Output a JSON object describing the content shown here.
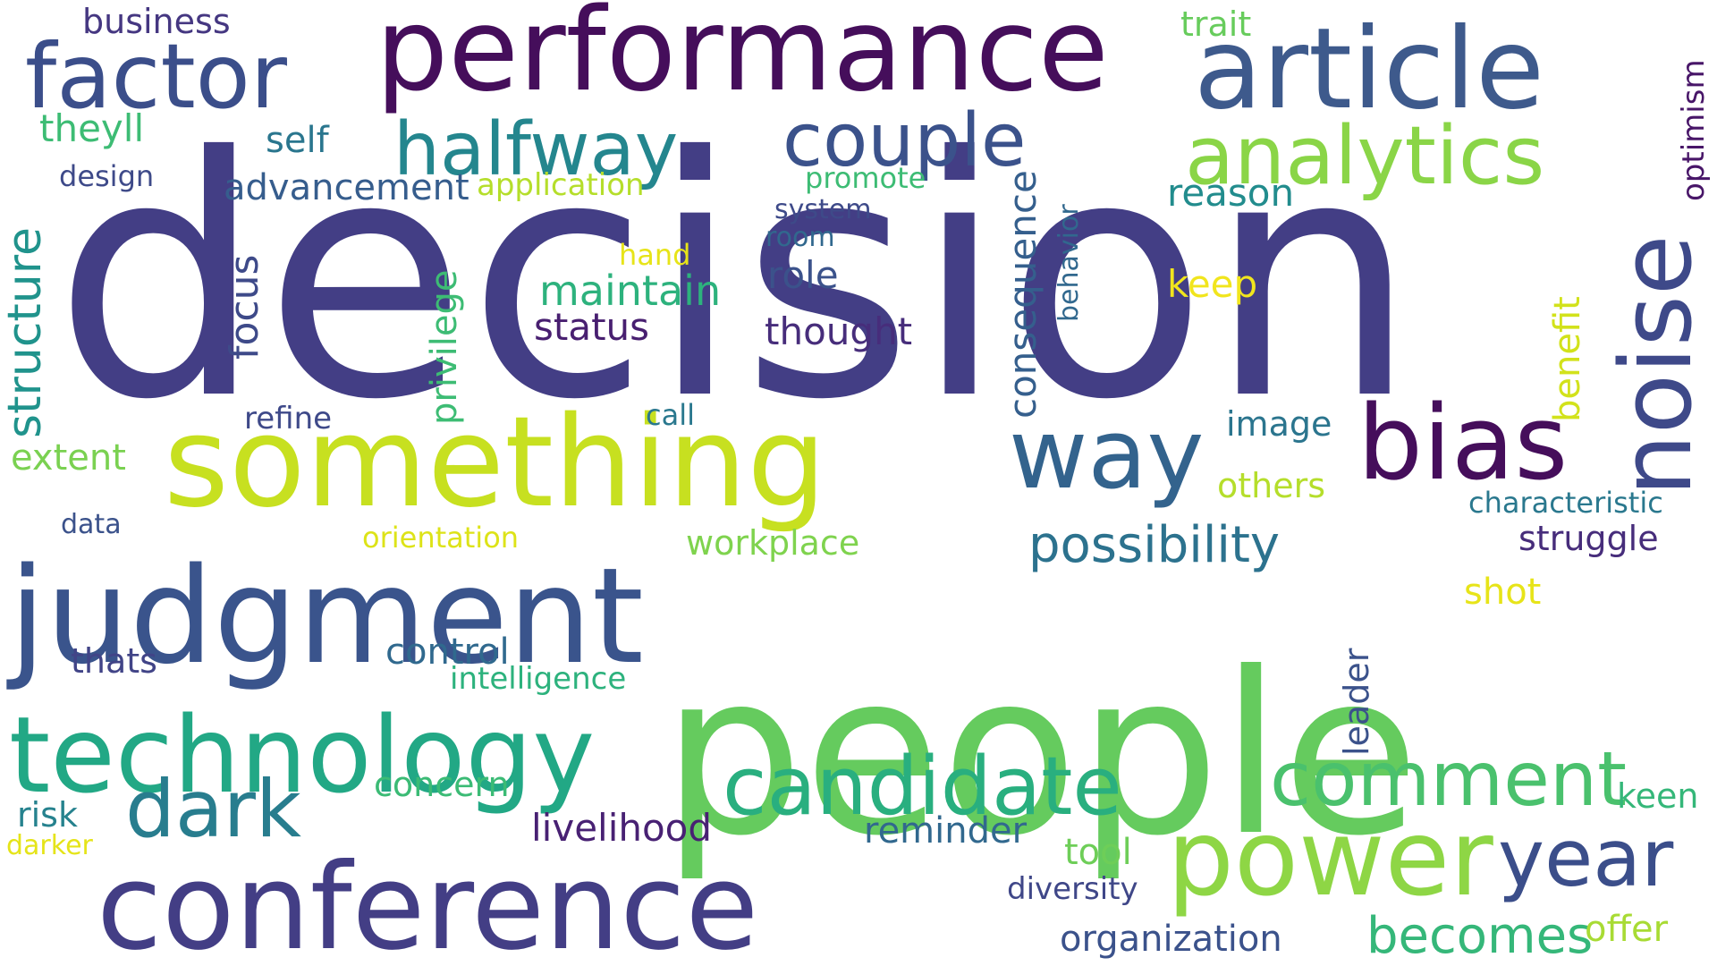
{
  "words": [
    {
      "text": "decision",
      "color": "#433e85"
    },
    {
      "text": "people",
      "color": "#65cb5e"
    },
    {
      "text": "performance",
      "color": "#450e5b"
    },
    {
      "text": "article",
      "color": "#3e5a8c"
    },
    {
      "text": "factor",
      "color": "#3b4e8a"
    },
    {
      "text": "something",
      "color": "#c7e020"
    },
    {
      "text": "judgment",
      "color": "#3a548c"
    },
    {
      "text": "conference",
      "color": "#433e85"
    },
    {
      "text": "technology",
      "color": "#22a885"
    },
    {
      "text": "power",
      "color": "#8ed645"
    },
    {
      "text": "halfway",
      "color": "#24868e"
    },
    {
      "text": "couple",
      "color": "#3b528b"
    },
    {
      "text": "analytics",
      "color": "#8ad547"
    },
    {
      "text": "bias",
      "color": "#450e5b"
    },
    {
      "text": "way",
      "color": "#33638d"
    },
    {
      "text": "noise",
      "color": "#3e4989"
    },
    {
      "text": "candidate",
      "color": "#29af7f"
    },
    {
      "text": "comment",
      "color": "#4ac16d"
    },
    {
      "text": "year",
      "color": "#3b4e8a"
    },
    {
      "text": "dark",
      "color": "#287d8e"
    },
    {
      "text": "possibility",
      "color": "#2c728e"
    },
    {
      "text": "becomes",
      "color": "#35b779"
    },
    {
      "text": "structure",
      "color": "#20938c"
    },
    {
      "text": "advancement",
      "color": "#365d8d"
    },
    {
      "text": "business",
      "color": "#453781"
    },
    {
      "text": "trait",
      "color": "#67cc5c"
    },
    {
      "text": "optimism",
      "color": "#481668"
    },
    {
      "text": "theyll",
      "color": "#3dbc74"
    },
    {
      "text": "self",
      "color": "#2a768e"
    },
    {
      "text": "design",
      "color": "#3e4a89"
    },
    {
      "text": "application",
      "color": "#b5de2b"
    },
    {
      "text": "promote",
      "color": "#3dbc74"
    },
    {
      "text": "system",
      "color": "#3e4a89"
    },
    {
      "text": "room",
      "color": "#31688e"
    },
    {
      "text": "reason",
      "color": "#228c8d"
    },
    {
      "text": "hand",
      "color": "#e7e419"
    },
    {
      "text": "behavior",
      "color": "#31688e"
    },
    {
      "text": "role",
      "color": "#3b528b"
    },
    {
      "text": "maintain",
      "color": "#2db27d"
    },
    {
      "text": "keep",
      "color": "#f1e51d"
    },
    {
      "text": "status",
      "color": "#481f70"
    },
    {
      "text": "thought",
      "color": "#472d7b"
    },
    {
      "text": "focus",
      "color": "#3e4a89"
    },
    {
      "text": "privilege",
      "color": "#3dbc74"
    },
    {
      "text": "consequence",
      "color": "#355f8d"
    },
    {
      "text": "benefit",
      "color": "#d2e21b"
    },
    {
      "text": "refine",
      "color": "#3e4989"
    },
    {
      "text": "call",
      "color": "#2a788e"
    },
    {
      "text": "image",
      "color": "#2b758e"
    },
    {
      "text": "extent",
      "color": "#7ad151"
    },
    {
      "text": "others",
      "color": "#b5de2b"
    },
    {
      "text": "data",
      "color": "#3b528b"
    },
    {
      "text": "orientation",
      "color": "#dde318"
    },
    {
      "text": "workplace",
      "color": "#7fd34e"
    },
    {
      "text": "characteristic",
      "color": "#2a788e"
    },
    {
      "text": "struggle",
      "color": "#472d7b"
    },
    {
      "text": "shot",
      "color": "#e7e419"
    },
    {
      "text": "thats",
      "color": "#414487"
    },
    {
      "text": "control",
      "color": "#30698e"
    },
    {
      "text": "intelligence",
      "color": "#2db27d"
    },
    {
      "text": "leader",
      "color": "#3b528b"
    },
    {
      "text": "concern",
      "color": "#3bbb75"
    },
    {
      "text": "risk",
      "color": "#26828e"
    },
    {
      "text": "darker",
      "color": "#e5e419"
    },
    {
      "text": "livelihood",
      "color": "#482173"
    },
    {
      "text": "reminder",
      "color": "#31688e"
    },
    {
      "text": "keen",
      "color": "#35b779"
    },
    {
      "text": "tool",
      "color": "#6ece58"
    },
    {
      "text": "diversity",
      "color": "#3f4788"
    },
    {
      "text": "organization",
      "color": "#3b528b"
    },
    {
      "text": "offer",
      "color": "#a8db34"
    }
  ]
}
